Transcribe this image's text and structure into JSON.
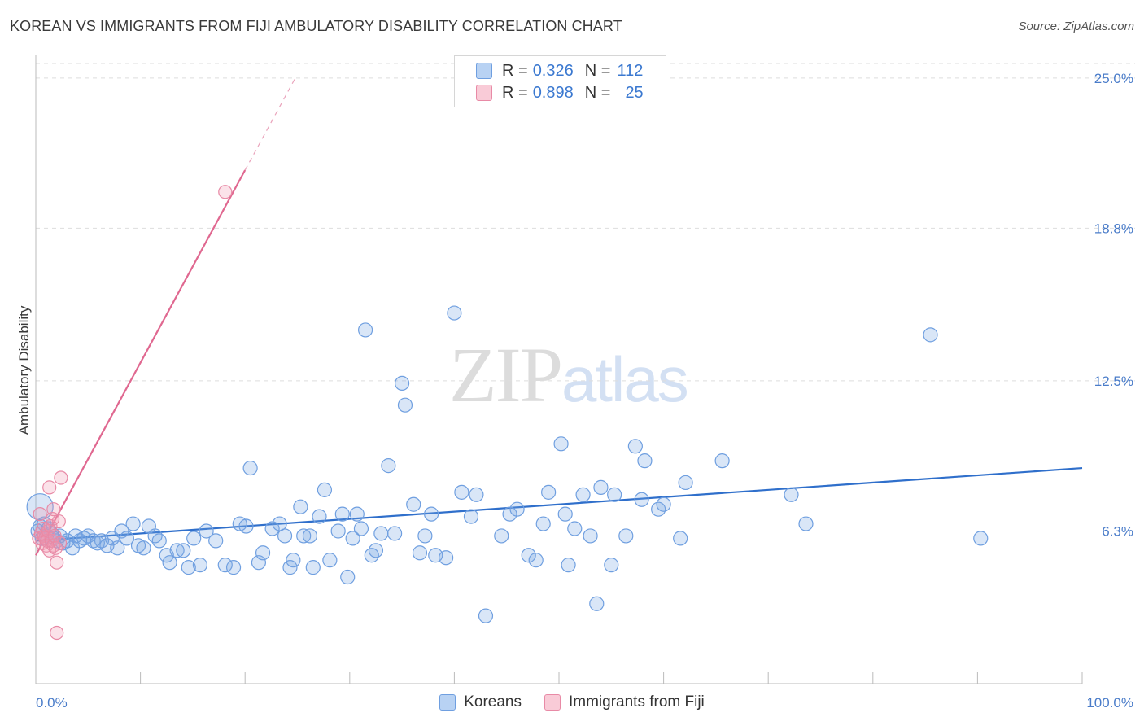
{
  "header": {
    "title": "KOREAN VS IMMIGRANTS FROM FIJI AMBULATORY DISABILITY CORRELATION CHART",
    "source": "Source: ZipAtlas.com"
  },
  "watermark": {
    "zip": "ZIP",
    "atlas": "atlas"
  },
  "legend": {
    "rows": [
      {
        "r_label": "R = ",
        "r_value": "0.326",
        "n_label": "N = ",
        "n_value": "112",
        "color": "#a9c8f0",
        "border": "#6f9fe0"
      },
      {
        "r_label": "R = ",
        "r_value": "0.898",
        "n_label": "N = ",
        "n_value": "25",
        "color": "#f8c0cf",
        "border": "#e88aa6"
      }
    ]
  },
  "bottom_legend": {
    "items": [
      {
        "label": "Koreans",
        "color": "#b8d2f3",
        "border": "#6f9fe0"
      },
      {
        "label": "Immigrants from Fiji",
        "color": "#f9cbd7",
        "border": "#e88aa6"
      }
    ]
  },
  "colors": {
    "blue_fill": "rgba(120,165,225,0.28)",
    "blue_stroke": "#6f9fe0",
    "blue_line": "#2f6fcb",
    "pink_fill": "rgba(240,150,175,0.28)",
    "pink_stroke": "#e88aa6",
    "pink_line": "#e06890",
    "grid": "#dddddd",
    "tick_label": "#4a7cc9"
  },
  "chart_data": {
    "type": "scatter",
    "title": "KOREAN VS IMMIGRANTS FROM FIJI AMBULATORY DISABILITY CORRELATION CHART",
    "xlabel": "",
    "ylabel": "Ambulatory Disability",
    "xlim": [
      0,
      100
    ],
    "ylim": [
      0,
      25.6
    ],
    "x_tick_labels": [
      {
        "value": 0,
        "label": "0.0%"
      },
      {
        "value": 100,
        "label": "100.0%"
      }
    ],
    "y_ticks": [
      {
        "value": 6.3,
        "label": "6.3%"
      },
      {
        "value": 12.5,
        "label": "12.5%"
      },
      {
        "value": 18.8,
        "label": "18.8%"
      },
      {
        "value": 25.0,
        "label": "25.0%"
      }
    ],
    "grid": "horizontal-dashed",
    "legend_position": "top-center",
    "series": [
      {
        "name": "Koreans",
        "R": 0.326,
        "N": 112,
        "trend": {
          "x": [
            0,
            100
          ],
          "y": [
            5.9,
            8.9
          ]
        },
        "points": [
          [
            0.2,
            6.3
          ],
          [
            0.4,
            6.5
          ],
          [
            0.6,
            6.0
          ],
          [
            0.8,
            6.6
          ],
          [
            1.0,
            6.1
          ],
          [
            1.2,
            6.4
          ],
          [
            1.5,
            6.2
          ],
          [
            1.7,
            6.0
          ],
          [
            2.0,
            5.9
          ],
          [
            2.3,
            6.1
          ],
          [
            2.6,
            5.8
          ],
          [
            3.0,
            5.9
          ],
          [
            3.5,
            5.6
          ],
          [
            3.8,
            6.1
          ],
          [
            4.2,
            5.9
          ],
          [
            4.6,
            6.0
          ],
          [
            5.0,
            6.1
          ],
          [
            5.5,
            5.9
          ],
          [
            5.9,
            5.8
          ],
          [
            6.3,
            5.9
          ],
          [
            6.8,
            5.7
          ],
          [
            7.3,
            6.0
          ],
          [
            7.8,
            5.6
          ],
          [
            8.2,
            6.3
          ],
          [
            8.7,
            6.0
          ],
          [
            9.3,
            6.6
          ],
          [
            9.8,
            5.7
          ],
          [
            10.3,
            5.6
          ],
          [
            10.8,
            6.5
          ],
          [
            11.4,
            6.1
          ],
          [
            11.8,
            5.9
          ],
          [
            12.5,
            5.3
          ],
          [
            12.8,
            5.0
          ],
          [
            13.5,
            5.5
          ],
          [
            14.1,
            5.5
          ],
          [
            14.6,
            4.8
          ],
          [
            15.1,
            6.0
          ],
          [
            15.7,
            4.9
          ],
          [
            16.3,
            6.3
          ],
          [
            17.2,
            5.9
          ],
          [
            18.1,
            4.9
          ],
          [
            18.9,
            4.8
          ],
          [
            19.5,
            6.6
          ],
          [
            20.1,
            6.5
          ],
          [
            20.5,
            8.9
          ],
          [
            21.3,
            5.0
          ],
          [
            21.7,
            5.4
          ],
          [
            22.6,
            6.4
          ],
          [
            23.3,
            6.6
          ],
          [
            23.8,
            6.1
          ],
          [
            24.3,
            4.8
          ],
          [
            24.6,
            5.1
          ],
          [
            25.3,
            7.3
          ],
          [
            25.6,
            6.1
          ],
          [
            26.2,
            6.1
          ],
          [
            26.5,
            4.8
          ],
          [
            27.1,
            6.9
          ],
          [
            27.6,
            8.0
          ],
          [
            28.1,
            5.1
          ],
          [
            28.9,
            6.3
          ],
          [
            29.3,
            7.0
          ],
          [
            29.8,
            4.4
          ],
          [
            30.3,
            6.0
          ],
          [
            30.7,
            7.0
          ],
          [
            31.1,
            6.4
          ],
          [
            31.5,
            14.6
          ],
          [
            32.1,
            5.3
          ],
          [
            32.5,
            5.5
          ],
          [
            33.0,
            6.2
          ],
          [
            33.7,
            9.0
          ],
          [
            34.3,
            6.2
          ],
          [
            35.0,
            12.4
          ],
          [
            35.3,
            11.5
          ],
          [
            36.1,
            7.4
          ],
          [
            36.7,
            5.4
          ],
          [
            37.2,
            6.1
          ],
          [
            37.8,
            7.0
          ],
          [
            38.2,
            5.3
          ],
          [
            39.2,
            5.2
          ],
          [
            40.0,
            15.3
          ],
          [
            40.7,
            7.9
          ],
          [
            41.6,
            6.9
          ],
          [
            42.1,
            7.8
          ],
          [
            43.0,
            2.8
          ],
          [
            44.5,
            6.1
          ],
          [
            45.3,
            7.0
          ],
          [
            46.0,
            7.2
          ],
          [
            47.1,
            5.3
          ],
          [
            47.8,
            5.1
          ],
          [
            48.5,
            6.6
          ],
          [
            49.0,
            7.9
          ],
          [
            50.2,
            9.9
          ],
          [
            50.6,
            7.0
          ],
          [
            50.9,
            4.9
          ],
          [
            51.5,
            6.4
          ],
          [
            52.3,
            7.8
          ],
          [
            53.0,
            6.1
          ],
          [
            53.6,
            3.3
          ],
          [
            54.0,
            8.1
          ],
          [
            55.0,
            4.9
          ],
          [
            55.3,
            7.8
          ],
          [
            56.4,
            6.1
          ],
          [
            57.3,
            9.8
          ],
          [
            57.9,
            7.6
          ],
          [
            58.2,
            9.2
          ],
          [
            59.5,
            7.2
          ],
          [
            60.0,
            7.4
          ],
          [
            61.6,
            6.0
          ],
          [
            62.1,
            8.3
          ],
          [
            65.6,
            9.2
          ],
          [
            72.2,
            7.8
          ],
          [
            73.6,
            6.6
          ]
        ],
        "outliers_far_right": [
          [
            85.5,
            14.4
          ],
          [
            90.3,
            6.0
          ]
        ]
      },
      {
        "name": "Immigrants from Fiji",
        "R": 0.898,
        "N": 25,
        "trend": {
          "x": [
            0,
            20.0
          ],
          "y": [
            5.3,
            21.2
          ]
        },
        "trend_extension": {
          "x": [
            20.0,
            24.8
          ],
          "y": [
            21.2,
            25.0
          ]
        },
        "points": [
          [
            0.3,
            6.0
          ],
          [
            0.4,
            7.0
          ],
          [
            0.5,
            6.2
          ],
          [
            0.6,
            5.8
          ],
          [
            0.7,
            6.4
          ],
          [
            0.8,
            6.1
          ],
          [
            0.9,
            6.0
          ],
          [
            1.0,
            5.7
          ],
          [
            1.1,
            5.9
          ],
          [
            1.2,
            6.3
          ],
          [
            1.3,
            5.5
          ],
          [
            1.3,
            8.1
          ],
          [
            1.4,
            6.5
          ],
          [
            1.5,
            5.9
          ],
          [
            1.6,
            6.8
          ],
          [
            1.7,
            5.7
          ],
          [
            1.8,
            6.1
          ],
          [
            1.9,
            5.6
          ],
          [
            2.0,
            5.0
          ],
          [
            2.0,
            2.1
          ],
          [
            2.2,
            6.7
          ],
          [
            2.3,
            5.8
          ],
          [
            2.4,
            8.5
          ],
          [
            1.7,
            7.2
          ],
          [
            18.1,
            20.3
          ]
        ]
      }
    ]
  }
}
